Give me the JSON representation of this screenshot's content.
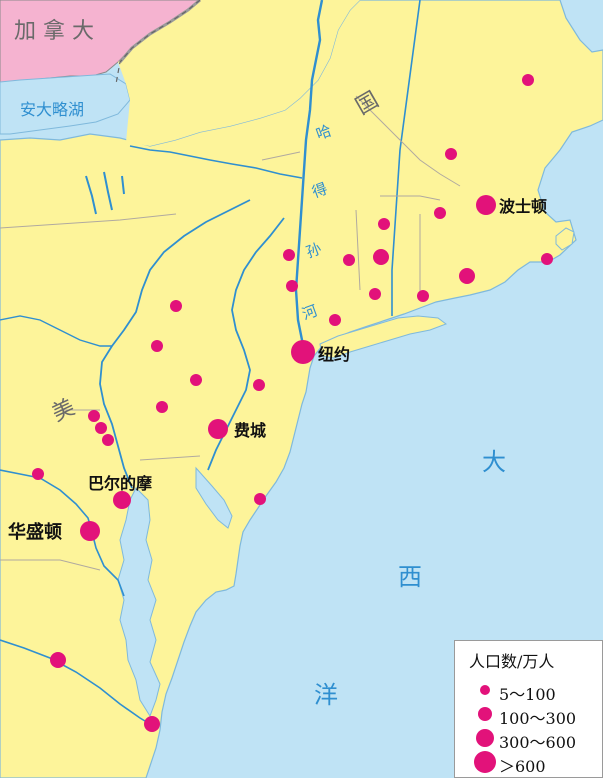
{
  "labels": {
    "canada": "加 拿 大",
    "lake_ontario": "安大略湖",
    "us_char_1": "美",
    "us_char_2": "国",
    "hudson": [
      "哈",
      "得",
      "孙",
      "河"
    ],
    "atlantic": [
      "大",
      "西",
      "洋"
    ]
  },
  "cities": {
    "boston": "波士顿",
    "new_york": "纽约",
    "philadelphia": "费城",
    "baltimore": "巴尔的摩",
    "washington": "华盛顿"
  },
  "legend": {
    "title": "人口数/万人",
    "items": [
      {
        "label": "5～100"
      },
      {
        "label": "100～300"
      },
      {
        "label": "300～600"
      },
      {
        "label": "＞600"
      }
    ]
  },
  "colors": {
    "land_us": "#fdf49a",
    "land_canada": "#f5b3d0",
    "water": "#bfe3f5",
    "river": "#2f8fd0",
    "city": "#e2127a",
    "border": "#8a8a8a"
  }
}
